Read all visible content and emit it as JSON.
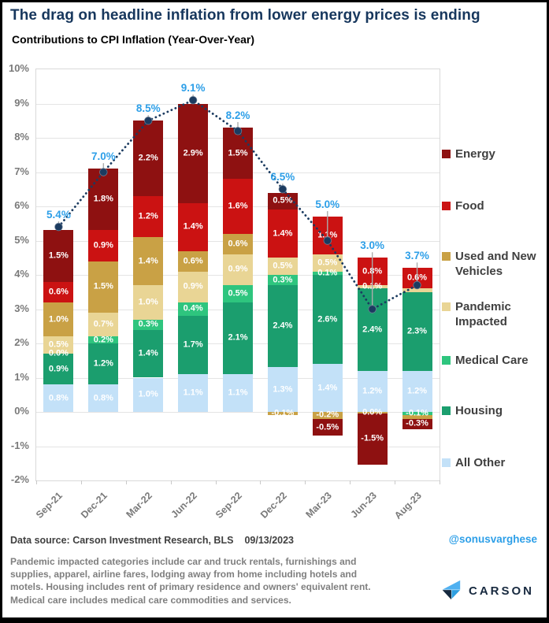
{
  "header": {
    "title": "The drag on headline inflation from lower energy prices is ending"
  },
  "chart_data": {
    "type": "bar",
    "stacked": true,
    "title": "Contributions to CPI Inflation (Year-Over-Year)",
    "categories": [
      "Sep-21",
      "Dec-21",
      "Mar-22",
      "Jun-22",
      "Sep-22",
      "Dec-22",
      "Mar-23",
      "Jun-23",
      "Aug-23"
    ],
    "series": [
      {
        "name": "Energy",
        "color": "#8E1111",
        "values": [
          1.5,
          1.8,
          2.2,
          2.9,
          1.5,
          0.5,
          -0.5,
          -1.5,
          -0.3
        ],
        "labels": [
          "1.5%",
          "1.8%",
          "2.2%",
          "2.9%",
          "1.5%",
          "0.5%",
          "-0.5%",
          "-1.5%",
          "-0.3%"
        ]
      },
      {
        "name": "Food",
        "color": "#CB1212",
        "values": [
          0.6,
          0.9,
          1.2,
          1.4,
          1.6,
          1.4,
          1.1,
          0.8,
          0.6
        ],
        "labels": [
          "0.6%",
          "0.9%",
          "1.2%",
          "1.4%",
          "1.6%",
          "1.4%",
          "1.1%",
          "0.8%",
          "0.6%"
        ]
      },
      {
        "name": "Used and New Vehicles",
        "color": "#C9A145",
        "values": [
          1.0,
          1.5,
          1.4,
          0.6,
          0.6,
          -0.1,
          -0.2,
          -0.04,
          -0.1
        ],
        "labels": [
          "1.0%",
          "1.5%",
          "1.4%",
          "0.6%",
          "0.6%",
          "-0.1%",
          "-0.2%",
          "0.0%",
          ""
        ]
      },
      {
        "name": "Pandemic Impacted",
        "color": "#E9D595",
        "values": [
          0.5,
          0.7,
          1.0,
          0.9,
          0.9,
          0.5,
          0.5,
          0.1,
          0.1
        ],
        "labels": [
          "0.5%",
          "0.7%",
          "1.0%",
          "0.9%",
          "0.9%",
          "0.5%",
          "0.5%",
          "0.1%",
          ""
        ]
      },
      {
        "name": "Medical Care",
        "color": "#2EC57E",
        "values": [
          0.0,
          0.2,
          0.3,
          0.4,
          0.5,
          0.3,
          0.1,
          0.0,
          -0.1
        ],
        "labels": [
          "0.0%",
          "0.2%",
          "0.3%",
          "0.4%",
          "0.5%",
          "0.3%",
          "0.1%",
          "",
          "-0.1%"
        ]
      },
      {
        "name": "Housing",
        "color": "#1B9E6E",
        "values": [
          0.9,
          1.2,
          1.4,
          1.7,
          2.1,
          2.4,
          2.6,
          2.4,
          2.3
        ],
        "labels": [
          "0.9%",
          "1.2%",
          "1.4%",
          "1.7%",
          "2.1%",
          "2.4%",
          "2.6%",
          "2.4%",
          "2.3%"
        ]
      },
      {
        "name": "All Other",
        "color": "#C3E1F8",
        "values": [
          0.8,
          0.8,
          1.0,
          1.1,
          1.1,
          1.3,
          1.4,
          1.2,
          1.2
        ],
        "labels": [
          "0.8%",
          "0.8%",
          "1.0%",
          "1.1%",
          "1.1%",
          "1.3%",
          "1.4%",
          "1.2%",
          "1.2%"
        ]
      }
    ],
    "totals": {
      "values": [
        5.4,
        7.0,
        8.5,
        9.1,
        8.2,
        6.5,
        5.0,
        3.0,
        3.7
      ],
      "labels": [
        "5.4%",
        "7.0%",
        "8.5%",
        "9.1%",
        "8.2%",
        "6.5%",
        "5.0%",
        "3.0%",
        "3.7%"
      ],
      "label_color": "#2D9FE8",
      "line_color": "#1B3B60"
    },
    "ylim": [
      -2,
      10
    ],
    "y_tick_suffix": "%",
    "grid": true,
    "legend_position": "right"
  },
  "footer": {
    "data_source": "Data source: Carson Investment Research, BLS",
    "date": "09/13/2023",
    "handle": "@sonusvarghese",
    "note": "Pandemic impacted categories include car and truck rentals, furnishings and supplies, apparel, airline fares, lodging away from home including hotels and motels. Housing includes rent of primary residence and owners' equivalent rent. Medical care includes medical care commodities and services.",
    "logo_text": "CARSON"
  }
}
